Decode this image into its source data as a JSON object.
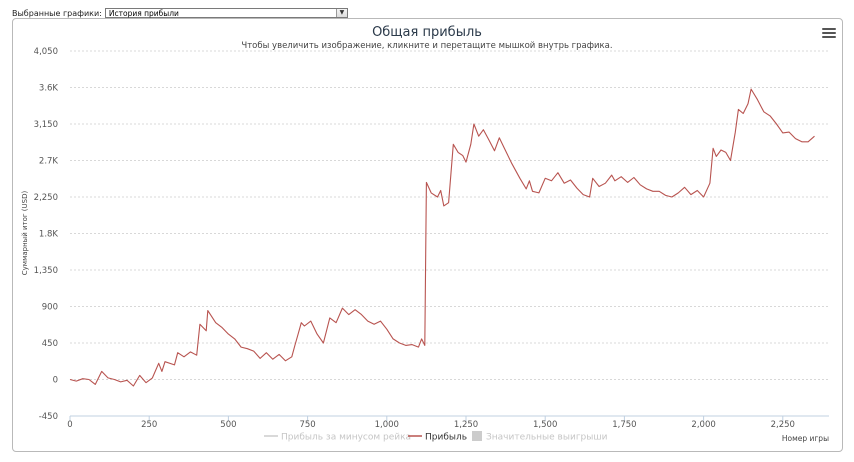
{
  "selector": {
    "label": "Выбранные графики:",
    "value": "История прибыли"
  },
  "chart_data": {
    "type": "line",
    "title": "Общая прибыль",
    "subtitle": "Чтобы увеличить изображение, кликните и перетащите мышкой внутрь графика.",
    "ylabel": "Суммарный итог (USD)",
    "xlabel": "Номер игры",
    "xlim": [
      0,
      2400
    ],
    "ylim": [
      -450,
      4050
    ],
    "x_ticks": [
      "0",
      "250",
      "500",
      "750",
      "1,000",
      "1,250",
      "1,500",
      "1,750",
      "2,000",
      "2,250"
    ],
    "x_tick_values": [
      0,
      250,
      500,
      750,
      1000,
      1250,
      1500,
      1750,
      2000,
      2250
    ],
    "y_ticks": [
      "-450",
      "0",
      "450",
      "900",
      "1,350",
      "1.8K",
      "2,250",
      "2.7K",
      "3,150",
      "3.6K",
      "4,050"
    ],
    "y_tick_values": [
      -450,
      0,
      450,
      900,
      1350,
      1800,
      2250,
      2700,
      3150,
      3600,
      4050
    ],
    "grid": true,
    "legend_position": "bottom-center",
    "legend": [
      {
        "name": "Прибыль за минусом рейка",
        "symbol": "line",
        "color": "#cccccc",
        "active": false
      },
      {
        "name": "Прибыль",
        "symbol": "line",
        "color": "#b85450",
        "active": true
      },
      {
        "name": "Значительные выигрыши",
        "symbol": "box",
        "color": "#cccccc",
        "active": false
      }
    ],
    "series": [
      {
        "name": "Прибыль",
        "color": "#b85450",
        "points": [
          [
            0,
            0
          ],
          [
            20,
            -20
          ],
          [
            40,
            10
          ],
          [
            60,
            0
          ],
          [
            80,
            -60
          ],
          [
            100,
            100
          ],
          [
            120,
            20
          ],
          [
            140,
            0
          ],
          [
            160,
            -30
          ],
          [
            180,
            -10
          ],
          [
            200,
            -80
          ],
          [
            220,
            50
          ],
          [
            240,
            -40
          ],
          [
            260,
            20
          ],
          [
            280,
            200
          ],
          [
            290,
            100
          ],
          [
            300,
            220
          ],
          [
            330,
            180
          ],
          [
            340,
            330
          ],
          [
            360,
            280
          ],
          [
            380,
            340
          ],
          [
            400,
            300
          ],
          [
            410,
            680
          ],
          [
            430,
            600
          ],
          [
            435,
            850
          ],
          [
            460,
            700
          ],
          [
            480,
            640
          ],
          [
            500,
            560
          ],
          [
            520,
            500
          ],
          [
            540,
            400
          ],
          [
            560,
            380
          ],
          [
            580,
            350
          ],
          [
            600,
            260
          ],
          [
            620,
            330
          ],
          [
            640,
            250
          ],
          [
            660,
            310
          ],
          [
            680,
            230
          ],
          [
            700,
            280
          ],
          [
            710,
            420
          ],
          [
            720,
            560
          ],
          [
            730,
            700
          ],
          [
            740,
            660
          ],
          [
            760,
            720
          ],
          [
            780,
            560
          ],
          [
            800,
            450
          ],
          [
            820,
            760
          ],
          [
            840,
            700
          ],
          [
            860,
            880
          ],
          [
            880,
            800
          ],
          [
            900,
            860
          ],
          [
            920,
            800
          ],
          [
            940,
            720
          ],
          [
            960,
            680
          ],
          [
            980,
            720
          ],
          [
            1000,
            620
          ],
          [
            1020,
            500
          ],
          [
            1040,
            450
          ],
          [
            1060,
            420
          ],
          [
            1080,
            430
          ],
          [
            1100,
            400
          ],
          [
            1110,
            500
          ],
          [
            1120,
            420
          ],
          [
            1125,
            2430
          ],
          [
            1140,
            2300
          ],
          [
            1160,
            2250
          ],
          [
            1170,
            2330
          ],
          [
            1180,
            2140
          ],
          [
            1195,
            2180
          ],
          [
            1210,
            2900
          ],
          [
            1225,
            2800
          ],
          [
            1240,
            2760
          ],
          [
            1250,
            2680
          ],
          [
            1265,
            2900
          ],
          [
            1275,
            3150
          ],
          [
            1290,
            3000
          ],
          [
            1305,
            3080
          ],
          [
            1320,
            2970
          ],
          [
            1340,
            2820
          ],
          [
            1355,
            2980
          ],
          [
            1370,
            2860
          ],
          [
            1395,
            2660
          ],
          [
            1420,
            2480
          ],
          [
            1440,
            2350
          ],
          [
            1450,
            2450
          ],
          [
            1460,
            2320
          ],
          [
            1480,
            2300
          ],
          [
            1500,
            2480
          ],
          [
            1520,
            2450
          ],
          [
            1540,
            2550
          ],
          [
            1560,
            2420
          ],
          [
            1580,
            2460
          ],
          [
            1600,
            2360
          ],
          [
            1620,
            2280
          ],
          [
            1640,
            2250
          ],
          [
            1650,
            2480
          ],
          [
            1670,
            2380
          ],
          [
            1690,
            2420
          ],
          [
            1710,
            2520
          ],
          [
            1720,
            2450
          ],
          [
            1740,
            2500
          ],
          [
            1760,
            2430
          ],
          [
            1780,
            2490
          ],
          [
            1800,
            2400
          ],
          [
            1820,
            2350
          ],
          [
            1840,
            2320
          ],
          [
            1860,
            2320
          ],
          [
            1880,
            2270
          ],
          [
            1900,
            2250
          ],
          [
            1920,
            2300
          ],
          [
            1940,
            2370
          ],
          [
            1960,
            2280
          ],
          [
            1980,
            2330
          ],
          [
            2000,
            2250
          ],
          [
            2020,
            2420
          ],
          [
            2030,
            2850
          ],
          [
            2040,
            2750
          ],
          [
            2055,
            2830
          ],
          [
            2070,
            2800
          ],
          [
            2085,
            2700
          ],
          [
            2100,
            3050
          ],
          [
            2110,
            3330
          ],
          [
            2125,
            3280
          ],
          [
            2140,
            3400
          ],
          [
            2150,
            3580
          ],
          [
            2170,
            3450
          ],
          [
            2190,
            3300
          ],
          [
            2210,
            3250
          ],
          [
            2230,
            3150
          ],
          [
            2250,
            3040
          ],
          [
            2270,
            3050
          ],
          [
            2290,
            2970
          ],
          [
            2310,
            2930
          ],
          [
            2330,
            2930
          ],
          [
            2350,
            3000
          ]
        ]
      }
    ]
  }
}
